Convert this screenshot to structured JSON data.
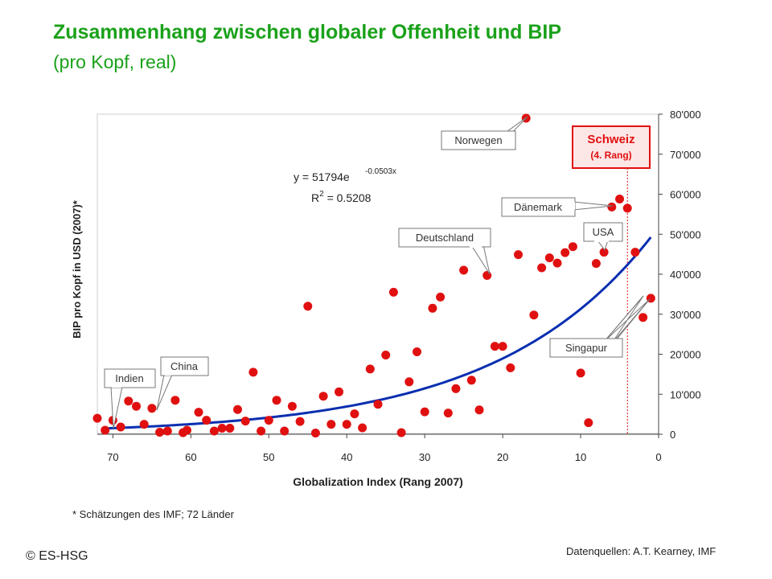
{
  "header": {
    "title": "Zusammenhang zwischen globaler Offenheit und BIP",
    "subtitle": "(pro Kopf, real)"
  },
  "footer": {
    "footnote": "* Schätzungen des IMF; 72 Länder",
    "copyright": "© ES-HSG",
    "sources": "Datenquellen: A.T. Kearney, IMF"
  },
  "colors": {
    "point": "#e01010",
    "trend": "#0a2fb0",
    "title": "#1aa11a",
    "highlight_border": "#e01010",
    "highlight_bg": "#fde6e6"
  },
  "chart_data": {
    "type": "scatter",
    "xlabel": "Globalization Index (Rang 2007)",
    "ylabel": "BIP pro Kopf in USD (2007)*",
    "xlim": [
      72,
      0
    ],
    "ylim": [
      0,
      80000
    ],
    "x_reversed": true,
    "y_axis_side": "right",
    "x_ticks": [
      "70",
      "60",
      "50",
      "40",
      "30",
      "20",
      "10",
      "0"
    ],
    "y_ticks": [
      "0",
      "10'000",
      "20'000",
      "30'000",
      "40'000",
      "50'000",
      "60'000",
      "70'000",
      "80'000"
    ],
    "grid": false,
    "trendline": {
      "type": "exponential",
      "a": 51794,
      "b": -0.0503,
      "equation_main": "y = 51794e",
      "equation_exp": "-0.0503x",
      "r2_main": "R",
      "r2_sup": "2",
      "r2_value": " = 0.5208"
    },
    "reference_line_x": 4,
    "points": [
      [
        72,
        4000
      ],
      [
        71,
        1000
      ],
      [
        70,
        3500
      ],
      [
        69,
        1800
      ],
      [
        68,
        8300
      ],
      [
        67,
        7000
      ],
      [
        66,
        2500
      ],
      [
        65,
        6500
      ],
      [
        64,
        500
      ],
      [
        63,
        800
      ],
      [
        62,
        8500
      ],
      [
        61,
        400
      ],
      [
        60.5,
        1000
      ],
      [
        59,
        5500
      ],
      [
        58,
        3500
      ],
      [
        57,
        800
      ],
      [
        56,
        1500
      ],
      [
        55,
        1500
      ],
      [
        54,
        6200
      ],
      [
        53,
        3300
      ],
      [
        52,
        15500
      ],
      [
        51,
        800
      ],
      [
        50,
        3500
      ],
      [
        49,
        8500
      ],
      [
        48,
        800
      ],
      [
        47,
        7000
      ],
      [
        46,
        3200
      ],
      [
        45,
        32000
      ],
      [
        44,
        300
      ],
      [
        43,
        9500
      ],
      [
        42,
        2500
      ],
      [
        41,
        10600
      ],
      [
        40,
        2500
      ],
      [
        39,
        5100
      ],
      [
        38,
        1600
      ],
      [
        37,
        16300
      ],
      [
        36,
        7500
      ],
      [
        35,
        19800
      ],
      [
        34,
        35500
      ],
      [
        33,
        400
      ],
      [
        32,
        13100
      ],
      [
        31,
        20600
      ],
      [
        30,
        5600
      ],
      [
        29,
        31500
      ],
      [
        28,
        34300
      ],
      [
        27,
        5300
      ],
      [
        26,
        11400
      ],
      [
        25,
        41000
      ],
      [
        24,
        13500
      ],
      [
        23,
        6100
      ],
      [
        22,
        39700
      ],
      [
        21,
        22000
      ],
      [
        20,
        22000
      ],
      [
        19,
        16600
      ],
      [
        18,
        44900
      ],
      [
        17,
        79000
      ],
      [
        16,
        29800
      ],
      [
        15,
        41600
      ],
      [
        14,
        44100
      ],
      [
        13,
        42800
      ],
      [
        12,
        45400
      ],
      [
        11,
        46900
      ],
      [
        10,
        15300
      ],
      [
        9,
        2900
      ],
      [
        8,
        42700
      ],
      [
        7,
        45500
      ],
      [
        6,
        56800
      ],
      [
        5,
        58800
      ],
      [
        4,
        56500
      ],
      [
        3,
        45500
      ],
      [
        2,
        29200
      ],
      [
        1,
        34000
      ]
    ],
    "annotations": [
      {
        "label": "Norwegen",
        "x": 17
      },
      {
        "label": "Dänemark",
        "x": 6
      },
      {
        "label": "USA",
        "x": 7
      },
      {
        "label": "Deutschland",
        "x": 22
      },
      {
        "label": "Singapur",
        "x": 1
      },
      {
        "label": "China",
        "x": 65
      },
      {
        "label": "Indien",
        "x": 71
      }
    ],
    "highlight": {
      "label": "Schweiz",
      "rank_label": "(4. Rang)",
      "x": 4
    }
  }
}
